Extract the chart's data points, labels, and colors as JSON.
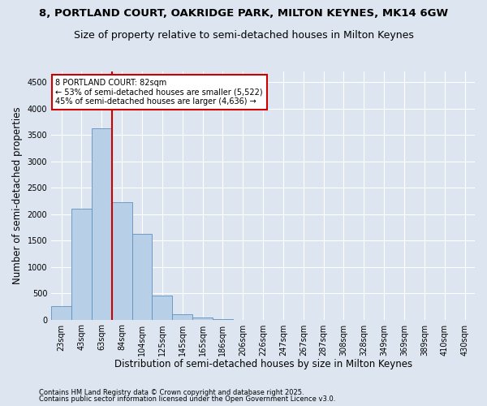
{
  "title_line1": "8, PORTLAND COURT, OAKRIDGE PARK, MILTON KEYNES, MK14 6GW",
  "title_line2": "Size of property relative to semi-detached houses in Milton Keynes",
  "xlabel": "Distribution of semi-detached houses by size in Milton Keynes",
  "ylabel": "Number of semi-detached properties",
  "footnote_line1": "Contains HM Land Registry data © Crown copyright and database right 2025.",
  "footnote_line2": "Contains public sector information licensed under the Open Government Licence v3.0.",
  "bar_labels": [
    "23sqm",
    "43sqm",
    "63sqm",
    "84sqm",
    "104sqm",
    "125sqm",
    "145sqm",
    "165sqm",
    "186sqm",
    "206sqm",
    "226sqm",
    "247sqm",
    "267sqm",
    "287sqm",
    "308sqm",
    "328sqm",
    "349sqm",
    "369sqm",
    "389sqm",
    "410sqm",
    "430sqm"
  ],
  "bar_values": [
    250,
    2100,
    3620,
    2220,
    1620,
    460,
    105,
    40,
    15,
    0,
    0,
    0,
    0,
    0,
    0,
    0,
    0,
    0,
    0,
    0,
    0
  ],
  "bar_color": "#b8cfe8",
  "bar_edge_color": "#6090c0",
  "ylim": [
    0,
    4700
  ],
  "yticks": [
    0,
    500,
    1000,
    1500,
    2000,
    2500,
    3000,
    3500,
    4000,
    4500
  ],
  "vline_x": 2.5,
  "vline_color": "#cc0000",
  "annotation_text": "8 PORTLAND COURT: 82sqm\n← 53% of semi-detached houses are smaller (5,522)\n45% of semi-detached houses are larger (4,636) →",
  "annotation_box_color": "#cc0000",
  "background_color": "#dde6f0",
  "plot_bg_color": "#dde6f0",
  "grid_color": "#ffffff",
  "title_fontsize": 9.5,
  "subtitle_fontsize": 9,
  "axis_label_fontsize": 8.5,
  "tick_fontsize": 7,
  "annotation_fontsize": 7,
  "footnote_fontsize": 6
}
